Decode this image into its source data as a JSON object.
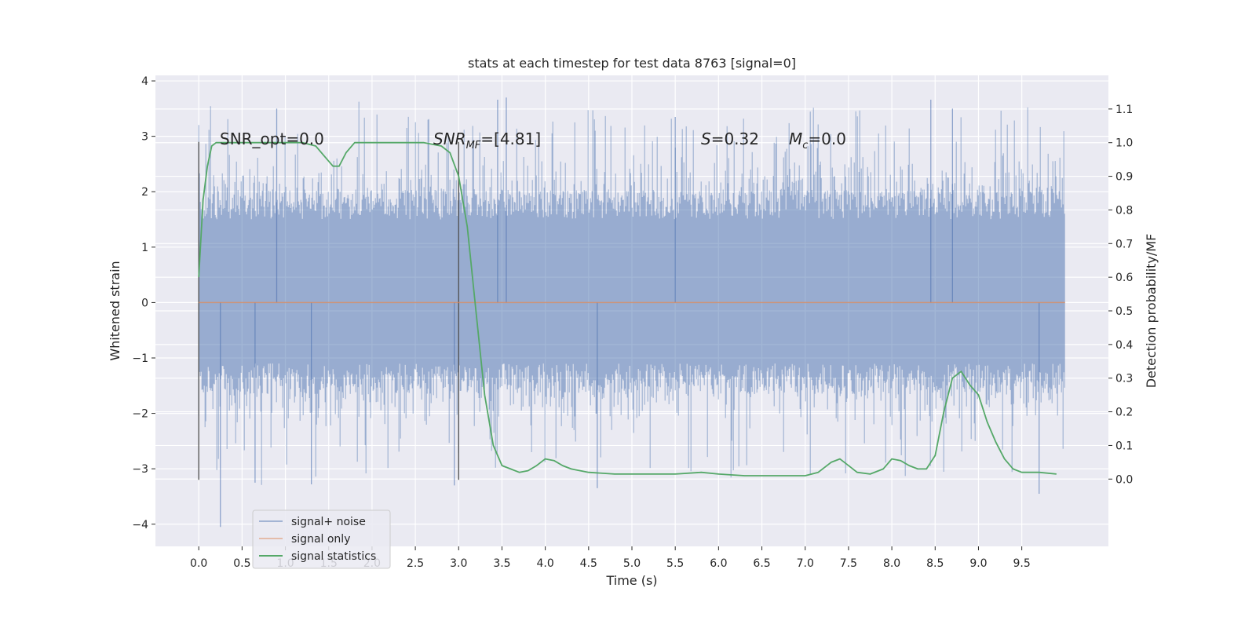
{
  "chart_data": {
    "type": "line",
    "title": "stats at each timestep for test data 8763 [signal=0]",
    "xlabel": "Time (s)",
    "ylabel": "Whitened strain",
    "ylabel_right": "Detection probability/MF",
    "xlim": [
      -0.5,
      10.5
    ],
    "ylim": [
      -4.4,
      4.1
    ],
    "ylim_right": [
      -0.2,
      1.2
    ],
    "x_ticks": [
      "0.0",
      "0.5",
      "1.0",
      "1.5",
      "2.0",
      "2.5",
      "3.0",
      "3.5",
      "4.0",
      "4.5",
      "5.0",
      "5.5",
      "6.0",
      "6.5",
      "7.0",
      "7.5",
      "8.0",
      "8.5",
      "9.0",
      "9.5"
    ],
    "y_ticks": [
      "4",
      "3",
      "2",
      "1",
      "0",
      "−1",
      "−2",
      "−3",
      "−4"
    ],
    "y_ticks_right": [
      "1.1",
      "1.0",
      "0.9",
      "0.8",
      "0.7",
      "0.6",
      "0.5",
      "0.4",
      "0.3",
      "0.2",
      "0.1",
      "0.0"
    ],
    "grid": true,
    "legend_position": "bottom-left",
    "annotations": {
      "snr_opt": "SNR_opt=0.0",
      "snr_mf_main": "SNR",
      "snr_mf_sub": "MF",
      "snr_mf_value": "=[4.81]",
      "s_symbol": "S",
      "s_value": "=0.32",
      "mc_symbol": "M",
      "mc_sub": "c",
      "mc_value": "=0.0"
    },
    "vertical_markers": [
      0.0,
      3.0
    ],
    "noise_envelope": {
      "typical_range": [
        -1.6,
        2.0
      ],
      "peak_max": 3.7,
      "peak_min": -4.05,
      "x_range": [
        0.0,
        10.0
      ]
    },
    "series": [
      {
        "name": "signal+ noise",
        "color": "#4c72b0",
        "axis": "left"
      },
      {
        "name": "signal only",
        "color": "#dd8452",
        "axis": "left",
        "x": [
          0.0,
          10.0
        ],
        "y": [
          0.0,
          0.0
        ]
      },
      {
        "name": "signal statistics",
        "color": "#55a868",
        "axis": "right",
        "x": [
          0.0,
          0.05,
          0.1,
          0.15,
          0.2,
          0.3,
          0.5,
          0.8,
          1.0,
          1.2,
          1.35,
          1.45,
          1.55,
          1.62,
          1.7,
          1.8,
          1.9,
          2.0,
          2.3,
          2.6,
          2.8,
          2.9,
          3.0,
          3.1,
          3.2,
          3.3,
          3.4,
          3.5,
          3.6,
          3.7,
          3.8,
          3.9,
          4.0,
          4.1,
          4.2,
          4.3,
          4.5,
          4.8,
          5.0,
          5.2,
          5.5,
          5.8,
          6.0,
          6.3,
          6.6,
          6.8,
          7.0,
          7.15,
          7.3,
          7.4,
          7.5,
          7.6,
          7.75,
          7.9,
          8.0,
          8.1,
          8.2,
          8.3,
          8.4,
          8.5,
          8.6,
          8.7,
          8.8,
          8.9,
          9.0,
          9.1,
          9.2,
          9.3,
          9.4,
          9.5,
          9.7,
          9.9
        ],
        "y": [
          0.6,
          0.83,
          0.93,
          0.99,
          1.0,
          1.0,
          1.0,
          1.0,
          1.0,
          1.0,
          0.99,
          0.96,
          0.93,
          0.93,
          0.97,
          1.0,
          1.0,
          1.0,
          1.0,
          1.0,
          0.99,
          0.97,
          0.9,
          0.75,
          0.5,
          0.25,
          0.1,
          0.04,
          0.03,
          0.02,
          0.025,
          0.04,
          0.06,
          0.055,
          0.04,
          0.03,
          0.02,
          0.015,
          0.015,
          0.015,
          0.015,
          0.02,
          0.015,
          0.01,
          0.01,
          0.01,
          0.01,
          0.02,
          0.05,
          0.06,
          0.04,
          0.02,
          0.015,
          0.03,
          0.06,
          0.055,
          0.04,
          0.03,
          0.03,
          0.07,
          0.2,
          0.3,
          0.32,
          0.28,
          0.25,
          0.17,
          0.11,
          0.06,
          0.03,
          0.02,
          0.02,
          0.015
        ]
      }
    ]
  }
}
